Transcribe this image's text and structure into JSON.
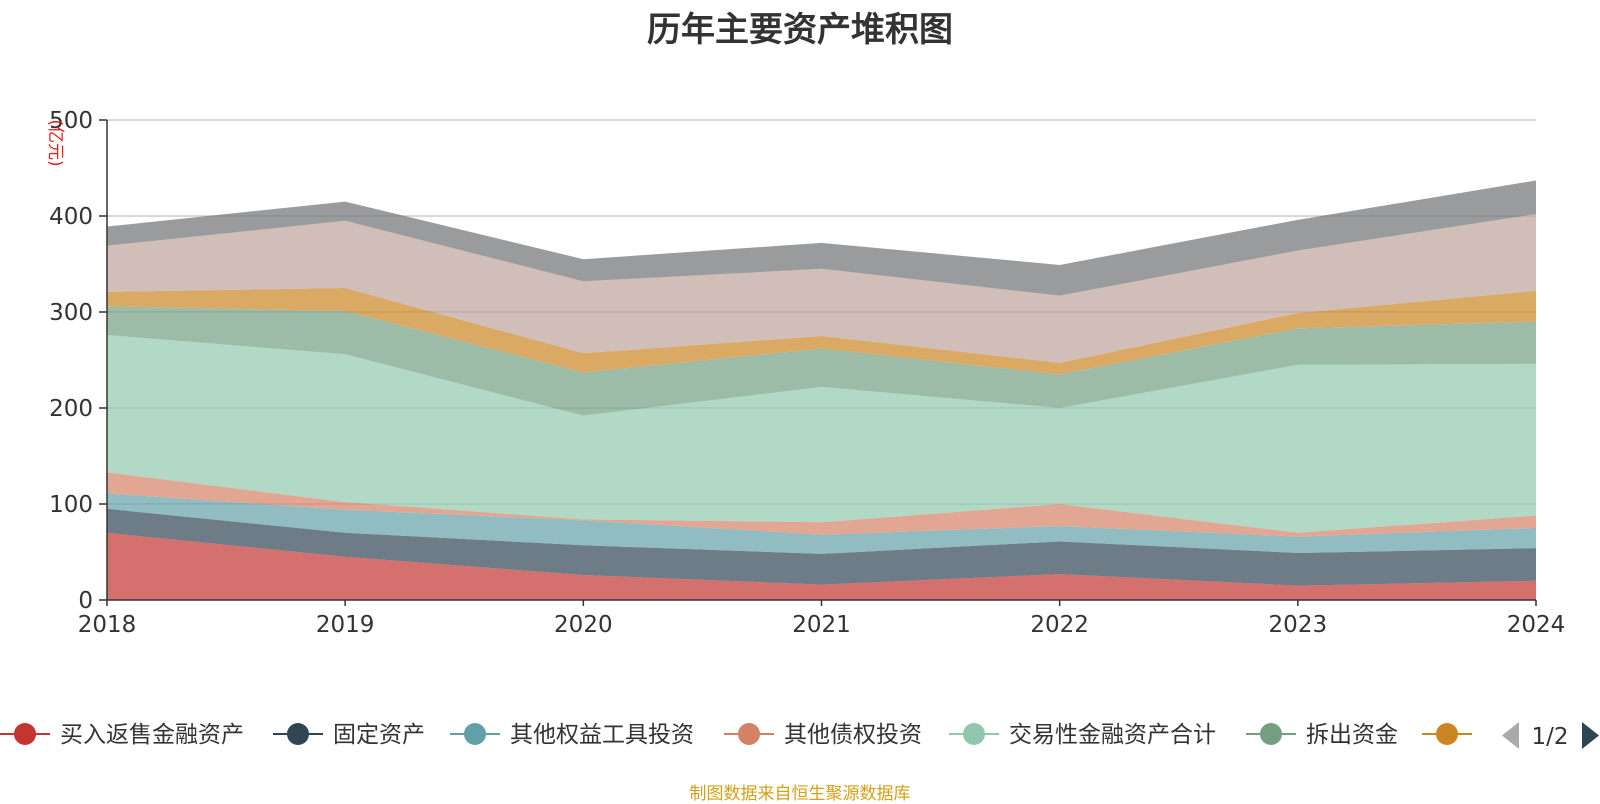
{
  "chart_data": {
    "type": "area",
    "stacked": true,
    "title": "历年主要资产堆积图",
    "ylabel": "(亿元)",
    "ylim": [
      0,
      500
    ],
    "yticks": [
      0,
      100,
      200,
      300,
      400,
      500
    ],
    "grid": true,
    "x": [
      "2018",
      "2019",
      "2020",
      "2021",
      "2022",
      "2023",
      "2024"
    ],
    "series": [
      {
        "name": "买入返售金融资产",
        "color": "#c23531",
        "values": [
          70,
          45,
          26,
          16,
          27,
          15,
          20
        ]
      },
      {
        "name": "固定资产",
        "color": "#2f4554",
        "values": [
          25,
          25,
          31,
          32,
          34,
          34,
          34
        ]
      },
      {
        "name": "其他权益工具投资",
        "color": "#61a0a8",
        "values": [
          16,
          24,
          26,
          20,
          16,
          17,
          21
        ]
      },
      {
        "name": "其他债权投资",
        "color": "#d48265",
        "values": [
          22,
          8,
          1,
          13,
          23,
          4,
          13
        ]
      },
      {
        "name": "交易性金融资产合计",
        "color": "#91c7ae",
        "values": [
          143,
          154,
          108,
          141,
          100,
          175,
          158
        ]
      },
      {
        "name": "拆出资金",
        "color": "#749f83",
        "values": [
          30,
          45,
          45,
          40,
          35,
          38,
          44
        ]
      },
      {
        "name": "",
        "color": "#ca8622",
        "values": [
          15,
          24,
          20,
          13,
          12,
          16,
          32
        ]
      },
      {
        "name": "",
        "color": "#bda29a",
        "values": [
          48,
          70,
          75,
          70,
          70,
          65,
          80
        ]
      },
      {
        "name": "",
        "color": "#6e7074",
        "values": [
          20,
          20,
          23,
          27,
          32,
          32,
          35
        ]
      }
    ],
    "legend": {
      "position": "bottom",
      "page": "1/2",
      "visible_count": 7
    }
  },
  "footer": "制图数据来自恒生聚源数据库"
}
